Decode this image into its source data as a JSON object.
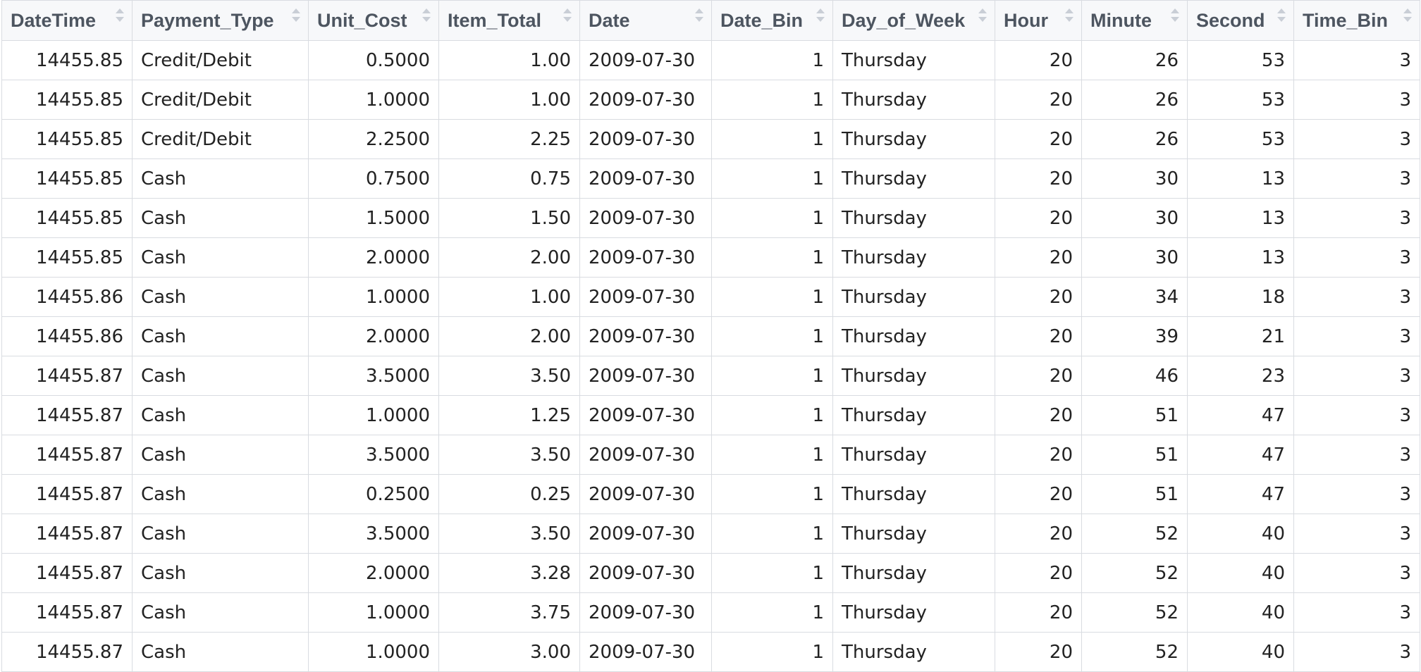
{
  "table": {
    "columns": [
      {
        "label": "DateTime",
        "align": "num"
      },
      {
        "label": "Payment_Type",
        "align": "txt"
      },
      {
        "label": "Unit_Cost",
        "align": "num"
      },
      {
        "label": "Item_Total",
        "align": "num"
      },
      {
        "label": "Date",
        "align": "txt"
      },
      {
        "label": "Date_Bin",
        "align": "num"
      },
      {
        "label": "Day_of_Week",
        "align": "txt"
      },
      {
        "label": "Hour",
        "align": "num"
      },
      {
        "label": "Minute",
        "align": "num"
      },
      {
        "label": "Second",
        "align": "num"
      },
      {
        "label": "Time_Bin",
        "align": "num"
      }
    ],
    "sort_icon": "sort-arrows-icon",
    "rows": [
      [
        "14455.85",
        "Credit/Debit",
        "0.5000",
        "1.00",
        "2009-07-30",
        "1",
        "Thursday",
        "20",
        "26",
        "53",
        "3"
      ],
      [
        "14455.85",
        "Credit/Debit",
        "1.0000",
        "1.00",
        "2009-07-30",
        "1",
        "Thursday",
        "20",
        "26",
        "53",
        "3"
      ],
      [
        "14455.85",
        "Credit/Debit",
        "2.2500",
        "2.25",
        "2009-07-30",
        "1",
        "Thursday",
        "20",
        "26",
        "53",
        "3"
      ],
      [
        "14455.85",
        "Cash",
        "0.7500",
        "0.75",
        "2009-07-30",
        "1",
        "Thursday",
        "20",
        "30",
        "13",
        "3"
      ],
      [
        "14455.85",
        "Cash",
        "1.5000",
        "1.50",
        "2009-07-30",
        "1",
        "Thursday",
        "20",
        "30",
        "13",
        "3"
      ],
      [
        "14455.85",
        "Cash",
        "2.0000",
        "2.00",
        "2009-07-30",
        "1",
        "Thursday",
        "20",
        "30",
        "13",
        "3"
      ],
      [
        "14455.86",
        "Cash",
        "1.0000",
        "1.00",
        "2009-07-30",
        "1",
        "Thursday",
        "20",
        "34",
        "18",
        "3"
      ],
      [
        "14455.86",
        "Cash",
        "2.0000",
        "2.00",
        "2009-07-30",
        "1",
        "Thursday",
        "20",
        "39",
        "21",
        "3"
      ],
      [
        "14455.87",
        "Cash",
        "3.5000",
        "3.50",
        "2009-07-30",
        "1",
        "Thursday",
        "20",
        "46",
        "23",
        "3"
      ],
      [
        "14455.87",
        "Cash",
        "1.0000",
        "1.25",
        "2009-07-30",
        "1",
        "Thursday",
        "20",
        "51",
        "47",
        "3"
      ],
      [
        "14455.87",
        "Cash",
        "3.5000",
        "3.50",
        "2009-07-30",
        "1",
        "Thursday",
        "20",
        "51",
        "47",
        "3"
      ],
      [
        "14455.87",
        "Cash",
        "0.2500",
        "0.25",
        "2009-07-30",
        "1",
        "Thursday",
        "20",
        "51",
        "47",
        "3"
      ],
      [
        "14455.87",
        "Cash",
        "3.5000",
        "3.50",
        "2009-07-30",
        "1",
        "Thursday",
        "20",
        "52",
        "40",
        "3"
      ],
      [
        "14455.87",
        "Cash",
        "2.0000",
        "3.28",
        "2009-07-30",
        "1",
        "Thursday",
        "20",
        "52",
        "40",
        "3"
      ],
      [
        "14455.87",
        "Cash",
        "1.0000",
        "3.75",
        "2009-07-30",
        "1",
        "Thursday",
        "20",
        "52",
        "40",
        "3"
      ],
      [
        "14455.87",
        "Cash",
        "1.0000",
        "3.00",
        "2009-07-30",
        "1",
        "Thursday",
        "20",
        "52",
        "40",
        "3"
      ]
    ]
  }
}
